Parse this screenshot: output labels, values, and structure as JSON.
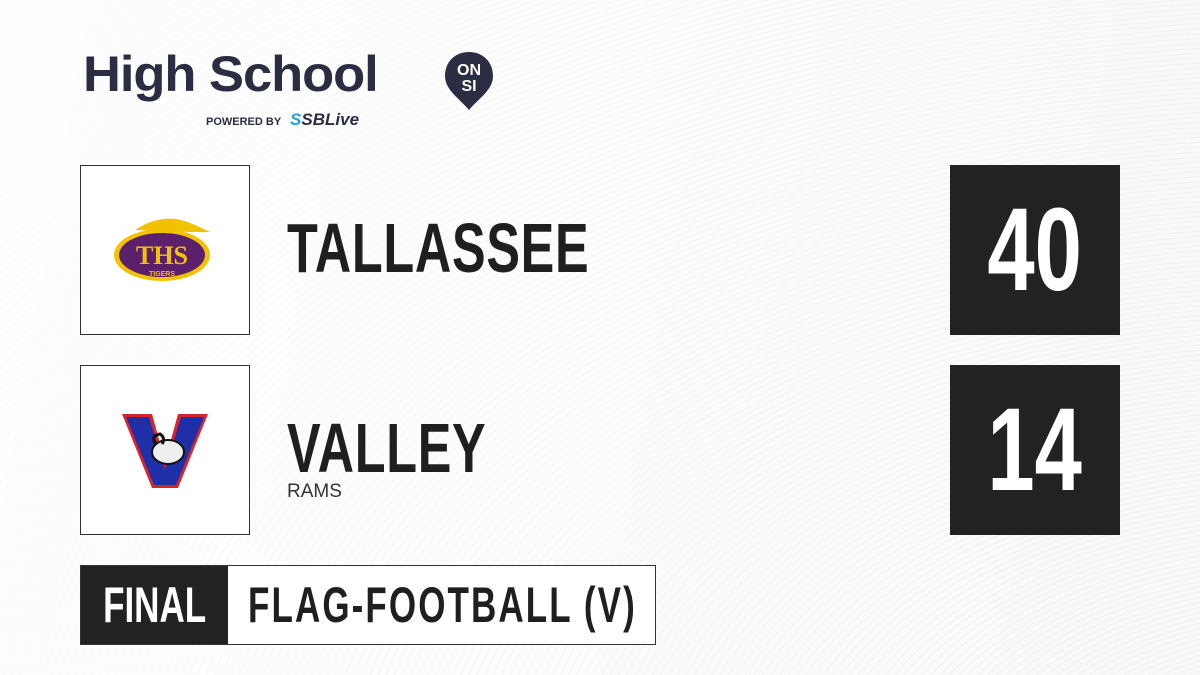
{
  "brand": {
    "title": "High School",
    "badge_top": "ON",
    "badge_bottom": "SI",
    "powered_by": "POWERED BY",
    "partner_prefix": "S",
    "partner": "SBLive",
    "colors": {
      "navy": "#2b2d42",
      "accent": "#1ea5e0"
    }
  },
  "teams": [
    {
      "name": "TALLASSEE",
      "mascot": "",
      "score": "40",
      "logo_text": "THS",
      "logo_sub": "TIGERS",
      "logo_colors": {
        "primary": "#5b1f6b",
        "secondary": "#f2c200"
      }
    },
    {
      "name": "VALLEY",
      "mascot": "RAMS",
      "score": "14",
      "logo_text": "V",
      "logo_colors": {
        "primary": "#1f2fa8",
        "secondary": "#d6262b"
      }
    }
  ],
  "status": {
    "label": "FINAL",
    "sport": "FLAG-FOOTBALL (V)"
  }
}
